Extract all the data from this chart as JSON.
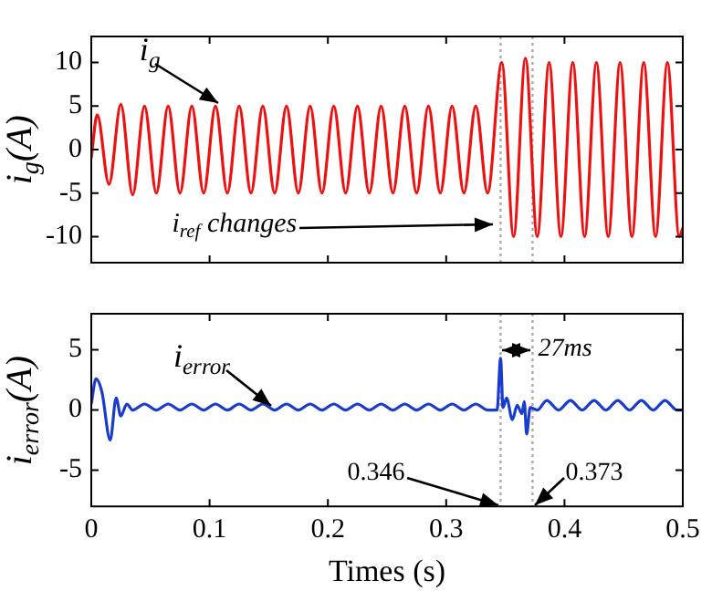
{
  "chart_data": [
    {
      "type": "line",
      "ylabel": "i$_{g}$(A)",
      "x": [
        0,
        0.005,
        0.015,
        0.025,
        0.035,
        0.045,
        0.055,
        0.065,
        0.075,
        0.085,
        0.095,
        0.105,
        0.115,
        0.125,
        0.135,
        0.145,
        0.155,
        0.165,
        0.175,
        0.185,
        0.195,
        0.205,
        0.215,
        0.225,
        0.235,
        0.245,
        0.255,
        0.265,
        0.275,
        0.285,
        0.295,
        0.305,
        0.315,
        0.325,
        0.335,
        0.347,
        0.357,
        0.367,
        0.377,
        0.387,
        0.397,
        0.407,
        0.417,
        0.427,
        0.437,
        0.447,
        0.457,
        0.467,
        0.477,
        0.487,
        0.497,
        0.5
      ],
      "series": [
        {
          "color": "#ee1111",
          "values": [
            -1,
            4,
            -4,
            5.2,
            -5.2,
            5,
            -5,
            5,
            -5,
            5,
            -5,
            5,
            -5,
            5,
            -5,
            5,
            -5,
            5,
            -5,
            5,
            -5,
            5,
            -5,
            5,
            -5,
            5,
            -5,
            5,
            -5,
            5,
            -5,
            5,
            -5,
            5,
            -5,
            10,
            -10,
            10.5,
            -10,
            10,
            -10,
            10,
            -10,
            10,
            -10,
            10,
            -10,
            10,
            -10,
            10,
            -10,
            -9
          ]
        }
      ],
      "xlim": [
        0,
        0.5
      ],
      "xticks": [
        0,
        0.1,
        0.2,
        0.3,
        0.4,
        0.5
      ],
      "ylim": [
        -13,
        13
      ],
      "yticks": [
        -10,
        -5,
        0,
        5,
        10
      ],
      "tick_labels": "y",
      "grid": false,
      "legend": false,
      "marker": "none",
      "line_style": "solid",
      "ref_lines": [
        {
          "axis": "x",
          "value": 0.346,
          "color": "#aaaaaa",
          "line_style": "dotted"
        },
        {
          "axis": "x",
          "value": 0.373,
          "color": "#aaaaaa",
          "line_style": "dotted"
        }
      ],
      "annotations": [
        {
          "text": "i$_{g}$",
          "x": 0.111,
          "y": 5
        },
        {
          "text": "i$_{ref}$ changes",
          "x": 0.343,
          "y": -9
        }
      ]
    },
    {
      "type": "line",
      "ylabel": "i$_{error}$(A)",
      "xlabel": "Times (s)",
      "x": [
        0,
        0.004,
        0.009,
        0.016,
        0.021,
        0.025,
        0.03,
        0.035,
        0.045,
        0.055,
        0.065,
        0.075,
        0.085,
        0.095,
        0.105,
        0.115,
        0.125,
        0.135,
        0.145,
        0.155,
        0.165,
        0.175,
        0.185,
        0.195,
        0.205,
        0.215,
        0.225,
        0.235,
        0.245,
        0.255,
        0.265,
        0.275,
        0.285,
        0.295,
        0.305,
        0.315,
        0.325,
        0.335,
        0.343,
        0.346,
        0.348,
        0.351,
        0.356,
        0.36,
        0.364,
        0.366,
        0.368,
        0.371,
        0.377,
        0.385,
        0.395,
        0.405,
        0.415,
        0.425,
        0.435,
        0.445,
        0.455,
        0.465,
        0.475,
        0.485,
        0.495,
        0.5
      ],
      "series": [
        {
          "color": "#1a3ccc",
          "values": [
            0.5,
            2.6,
            1.5,
            -2.5,
            1,
            -0.5,
            0.5,
            0,
            0.5,
            0,
            0.5,
            0,
            0.5,
            0,
            0.5,
            0,
            0.5,
            0,
            0.5,
            0,
            0.5,
            0,
            0.5,
            0,
            0.5,
            0,
            0.5,
            0,
            0.5,
            0,
            0.5,
            0,
            0.5,
            0,
            0.5,
            0,
            0.5,
            0,
            0,
            4.3,
            0.2,
            1,
            -0.8,
            0.4,
            -0.3,
            0.7,
            -2,
            0.2,
            0,
            0.8,
            0,
            0.8,
            0,
            0.8,
            0,
            0.8,
            0,
            0.8,
            0,
            0.8,
            0,
            0
          ]
        }
      ],
      "xlim": [
        0,
        0.5
      ],
      "xticks": [
        0,
        0.1,
        0.2,
        0.3,
        0.4,
        0.5
      ],
      "ylim": [
        -8,
        8
      ],
      "yticks": [
        -5,
        0,
        5
      ],
      "grid": false,
      "legend": false,
      "marker": "none",
      "line_style": "solid",
      "ref_lines": [
        {
          "axis": "x",
          "value": 0.346,
          "label": "0.346",
          "color": "#aaaaaa",
          "line_style": "dotted"
        },
        {
          "axis": "x",
          "value": 0.373,
          "label": "0.373",
          "color": "#aaaaaa",
          "line_style": "dotted"
        }
      ],
      "annotations": [
        {
          "text": "i$_{error}$",
          "x": 0.155,
          "y": 0
        },
        {
          "text": "27ms",
          "x": 0.373,
          "y": 5
        }
      ]
    }
  ]
}
